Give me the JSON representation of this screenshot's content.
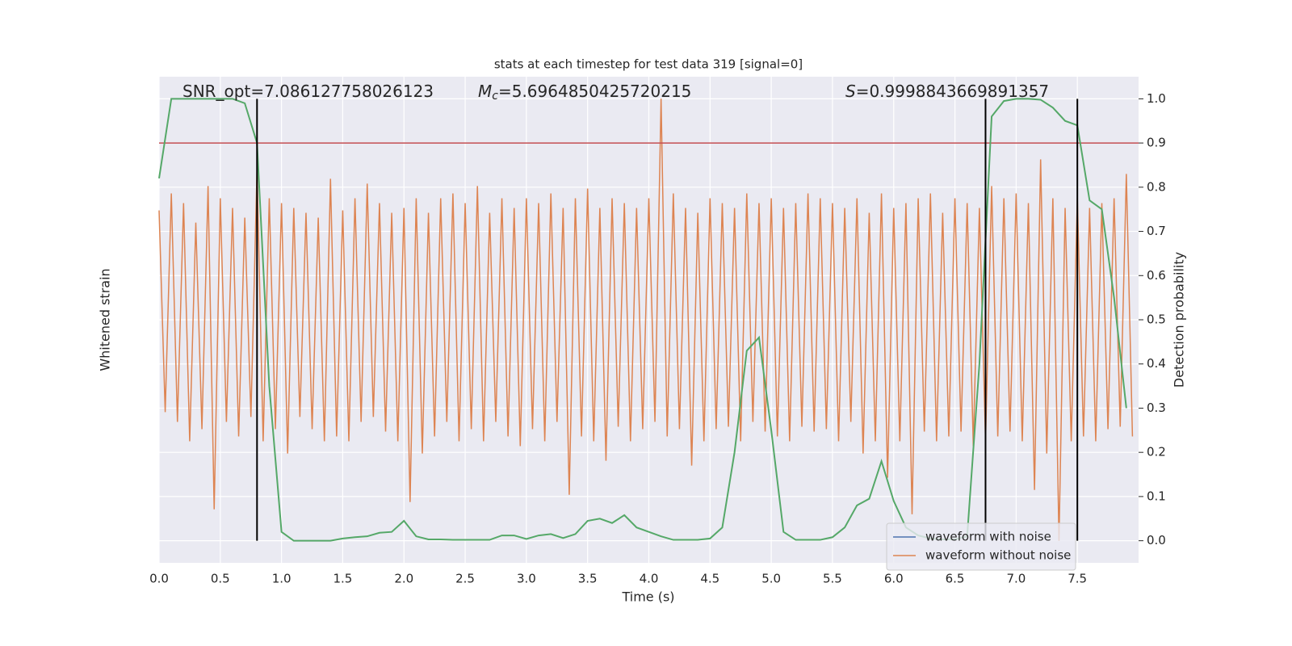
{
  "chart_data": {
    "type": "line",
    "title": "stats at each timestep for test data 319 [signal=0]",
    "xlabel": "Time (s)",
    "ylabel": "Whitened strain",
    "y2label": "Detection probability",
    "annotations": [
      {
        "text": "SNR_opt=7.086127758026123"
      },
      {
        "symbol": "M",
        "subscript": "c",
        "text": "=5.6964850425720215"
      },
      {
        "symbol": "S",
        "text": "=0.9998843669891357"
      }
    ],
    "xlim": [
      0,
      8
    ],
    "xticks": [
      {
        "value": 0,
        "label": "0.0"
      },
      0.5,
      {
        "value": 1,
        "label": "1.0"
      },
      1.5,
      {
        "value": 2,
        "label": "2.0"
      },
      2.5,
      {
        "value": 3,
        "label": "3.0"
      },
      3.5,
      {
        "value": 4,
        "label": "4.0"
      },
      4.5,
      {
        "value": 5,
        "label": "5.0"
      },
      5.5,
      {
        "value": 6,
        "label": "6.0"
      },
      6.5,
      {
        "value": 7,
        "label": "7.0"
      },
      7.5
    ],
    "ylim": [
      -1,
      1
    ],
    "y2lim": [
      -0.05,
      1.05
    ],
    "y2ticks": [
      {
        "value": 0,
        "label": "0.0"
      },
      0.1,
      0.2,
      0.3,
      0.4,
      0.5,
      0.6,
      0.7,
      0.8,
      0.9,
      {
        "value": 1,
        "label": "1.0"
      }
    ],
    "grid": true,
    "legend": "lower right",
    "series": [
      {
        "name": "waveform with noise",
        "color": "#4c72b0"
      },
      {
        "name": "waveform without noise",
        "color": "#dd8452",
        "axis": "y",
        "x": [
          0,
          0.05,
          0.1,
          0.15,
          0.2,
          0.25,
          0.3,
          0.35,
          0.4,
          0.45,
          0.5,
          0.55,
          0.6,
          0.65,
          0.7,
          0.75,
          0.8,
          0.85,
          0.9,
          0.95,
          1,
          1.05,
          1.1,
          1.15,
          1.2,
          1.25,
          1.3,
          1.35,
          1.4,
          1.45,
          1.5,
          1.55,
          1.6,
          1.65,
          1.7,
          1.75,
          1.8,
          1.85,
          1.9,
          1.95,
          2,
          2.05,
          2.1,
          2.15,
          2.2,
          2.25,
          2.3,
          2.35,
          2.4,
          2.45,
          2.5,
          2.55,
          2.6,
          2.65,
          2.7,
          2.75,
          2.8,
          2.85,
          2.9,
          2.95,
          3,
          3.05,
          3.1,
          3.15,
          3.2,
          3.25,
          3.3,
          3.35,
          3.4,
          3.45,
          3.5,
          3.55,
          3.6,
          3.65,
          3.7,
          3.75,
          3.8,
          3.85,
          3.9,
          3.95,
          4,
          4.05,
          4.1,
          4.15,
          4.2,
          4.25,
          4.3,
          4.35,
          4.4,
          4.45,
          4.5,
          4.55,
          4.6,
          4.65,
          4.7,
          4.75,
          4.8,
          4.85,
          4.9,
          4.95,
          5,
          5.05,
          5.1,
          5.15,
          5.2,
          5.25,
          5.3,
          5.35,
          5.4,
          5.45,
          5.5,
          5.55,
          5.6,
          5.65,
          5.7,
          5.75,
          5.8,
          5.85,
          5.9,
          5.95,
          6,
          6.05,
          6.1,
          6.15,
          6.2,
          6.25,
          6.3,
          6.35,
          6.4,
          6.45,
          6.5,
          6.55,
          6.6,
          6.65,
          6.7,
          6.75,
          6.8,
          6.85,
          6.9,
          6.95,
          7,
          7.05,
          7.1,
          7.15,
          7.2,
          7.25,
          7.3,
          7.35,
          7.4,
          7.45,
          7.5,
          7.55,
          7.6,
          7.65,
          7.7,
          7.75,
          7.8,
          7.85,
          7.9,
          7.95
        ],
        "values": [
          0.45,
          -0.38,
          0.52,
          -0.42,
          0.48,
          -0.5,
          0.4,
          -0.45,
          0.55,
          -0.78,
          0.5,
          -0.42,
          0.46,
          -0.48,
          0.42,
          -0.4,
          0.62,
          -0.5,
          0.5,
          -0.45,
          0.48,
          -0.55,
          0.46,
          -0.4,
          0.44,
          -0.45,
          0.42,
          -0.5,
          0.58,
          -0.48,
          0.45,
          -0.5,
          0.5,
          -0.42,
          0.56,
          -0.4,
          0.48,
          -0.46,
          0.44,
          -0.5,
          0.46,
          -0.75,
          0.5,
          -0.55,
          0.44,
          -0.48,
          0.5,
          -0.42,
          0.52,
          -0.5,
          0.48,
          -0.45,
          0.55,
          -0.5,
          0.44,
          -0.42,
          0.5,
          -0.48,
          0.46,
          -0.52,
          0.5,
          -0.45,
          0.48,
          -0.5,
          0.52,
          -0.42,
          0.46,
          -0.72,
          0.5,
          -0.48,
          0.54,
          -0.5,
          0.46,
          -0.58,
          0.5,
          -0.44,
          0.48,
          -0.5,
          0.46,
          -0.45,
          0.5,
          -0.42,
          0.91,
          -0.48,
          0.52,
          -0.45,
          0.46,
          -0.6,
          0.44,
          -0.5,
          0.5,
          -0.45,
          0.48,
          -0.44,
          0.46,
          -0.5,
          0.52,
          -0.42,
          0.48,
          -0.46,
          0.5,
          -0.48,
          0.46,
          -0.5,
          0.48,
          -0.44,
          0.52,
          -0.46,
          0.5,
          -0.45,
          0.48,
          -0.5,
          0.46,
          -0.42,
          0.5,
          -0.55,
          0.44,
          -0.5,
          0.52,
          -0.65,
          0.46,
          -0.5,
          0.48,
          -0.8,
          0.5,
          -0.46,
          0.52,
          -0.5,
          0.44,
          -0.48,
          0.5,
          -0.46,
          0.48,
          -0.52,
          0.46,
          -0.5,
          0.55,
          -0.48,
          0.5,
          -0.46,
          0.52,
          -0.5,
          0.48,
          -0.7,
          0.66,
          -0.55,
          0.5,
          -0.91,
          0.46,
          -0.5,
          0.5,
          -0.48,
          0.46,
          -0.5,
          0.48,
          -0.45,
          0.5,
          -0.44,
          0.6,
          -0.48
        ]
      }
    ],
    "probability": {
      "color": "#55a868",
      "axis": "y2",
      "x": [
        0,
        0.1,
        0.2,
        0.3,
        0.4,
        0.5,
        0.6,
        0.7,
        0.8,
        0.9,
        1,
        1.1,
        1.2,
        1.3,
        1.4,
        1.5,
        1.6,
        1.7,
        1.8,
        1.9,
        2,
        2.1,
        2.2,
        2.3,
        2.4,
        2.5,
        2.6,
        2.7,
        2.8,
        2.9,
        3,
        3.1,
        3.2,
        3.3,
        3.4,
        3.5,
        3.6,
        3.7,
        3.8,
        3.9,
        4,
        4.1,
        4.2,
        4.3,
        4.4,
        4.5,
        4.6,
        4.7,
        4.8,
        4.9,
        5,
        5.1,
        5.2,
        5.3,
        5.4,
        5.5,
        5.6,
        5.7,
        5.8,
        5.9,
        6,
        6.1,
        6.2,
        6.3,
        6.4,
        6.5,
        6.6,
        6.7,
        6.8,
        6.9,
        7,
        7.1,
        7.2,
        7.3,
        7.4,
        7.5,
        7.6,
        7.7,
        7.8,
        7.9
      ],
      "values": [
        0.82,
        1,
        1,
        1,
        1,
        1,
        1,
        0.99,
        0.9,
        0.35,
        0.02,
        0,
        0,
        0,
        0,
        0.005,
        0.008,
        0.01,
        0.018,
        0.02,
        0.045,
        0.01,
        0.003,
        0.003,
        0.002,
        0.002,
        0.002,
        0.002,
        0.012,
        0.012,
        0.004,
        0.012,
        0.015,
        0.006,
        0.015,
        0.045,
        0.05,
        0.04,
        0.058,
        0.03,
        0.02,
        0.01,
        0.002,
        0.002,
        0.002,
        0.005,
        0.03,
        0.2,
        0.43,
        0.46,
        0.25,
        0.02,
        0.002,
        0.002,
        0.002,
        0.008,
        0.03,
        0.08,
        0.095,
        0.18,
        0.09,
        0.03,
        0.012,
        0.005,
        0.003,
        0.003,
        0.01,
        0.4,
        0.96,
        0.995,
        1,
        1,
        0.998,
        0.98,
        0.95,
        0.94,
        0.77,
        0.75,
        0.55,
        0.3
      ]
    },
    "threshold": {
      "value": 0.9,
      "color": "#c44e52"
    },
    "vlines": {
      "values": [
        0.8,
        6.75,
        7.5
      ],
      "color": "#000000"
    }
  }
}
